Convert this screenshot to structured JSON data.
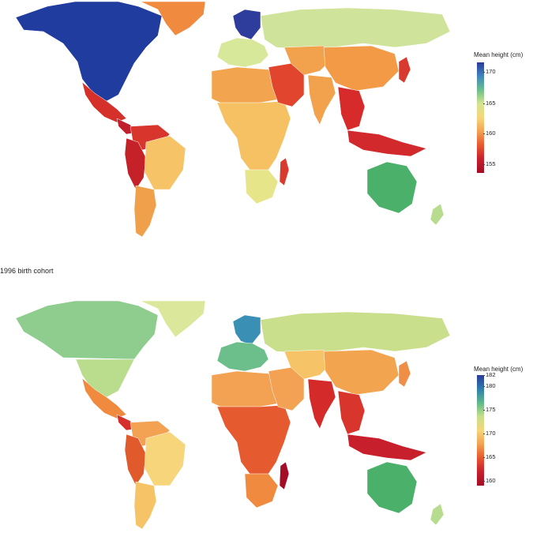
{
  "panels": [
    {
      "id": "earlier",
      "cohort_label": "",
      "legend": {
        "title": "Mean height (cm)",
        "ticks": [
          "170",
          "165",
          "160",
          "155"
        ],
        "colors": [
          "#2c3a9c",
          "#3f86bf",
          "#6cc08b",
          "#d5e48f",
          "#f6d57b",
          "#f3a152",
          "#e8572f",
          "#c81f2d",
          "#a30d26"
        ]
      }
    },
    {
      "id": "1996",
      "cohort_label": "1996 birth cohort",
      "legend": {
        "title": "Mean height (cm)",
        "ticks": [
          "182",
          "180",
          "175",
          "170",
          "165",
          "160"
        ],
        "colors": [
          "#2c3a9c",
          "#2f7dae",
          "#5fb88a",
          "#c6df8c",
          "#f6d57b",
          "#f3a152",
          "#e8572f",
          "#c81f2d",
          "#a30d26"
        ]
      }
    }
  ],
  "regions_top": {
    "north_america": "#1f3c9e",
    "greenland": "#f08a3e",
    "mexico": "#d6302b",
    "central_america": "#c01f2e",
    "south_america_north": "#d8352c",
    "andes": "#c42129",
    "brazil": "#f6c467",
    "southern_cone": "#f0a04b",
    "europe_north": "#2e3d9b",
    "europe": "#d8e89a",
    "russia": "#cfe39a",
    "middle_east": "#e2452d",
    "central_asia": "#f2a24d",
    "china": "#f29a45",
    "india": "#f2a24d",
    "se_asia": "#d72a2a",
    "japan": "#d93a2f",
    "indonesia": "#d22a2c",
    "north_africa": "#f2a54e",
    "africa": "#f6c162",
    "africa_south": "#e6e58a",
    "madagascar": "#d83a2e",
    "australia": "#4bb06a",
    "nz": "#b7dc8f"
  },
  "regions_bottom": {
    "north_america": "#8fcd8f",
    "usa": "#b9dc8d",
    "greenland": "#dbe79a",
    "mexico": "#f08a3e",
    "central_america": "#d6302b",
    "south_america_north": "#f3a152",
    "andes": "#e05a2c",
    "brazil": "#f6d57b",
    "southern_cone": "#f6c467",
    "europe_north": "#3a8fb5",
    "europe": "#6cbf8a",
    "russia": "#c9df8c",
    "middle_east": "#f3a152",
    "central_asia": "#f6c467",
    "china": "#f2a54e",
    "india": "#d42a2a",
    "se_asia": "#d8352c",
    "japan": "#ef8f47",
    "indonesia": "#c81f2d",
    "north_africa": "#f3a152",
    "africa": "#e65a2f",
    "africa_south": "#f08a3e",
    "madagascar": "#a30d26",
    "australia": "#4bb06a",
    "nz": "#b7dc8f"
  }
}
